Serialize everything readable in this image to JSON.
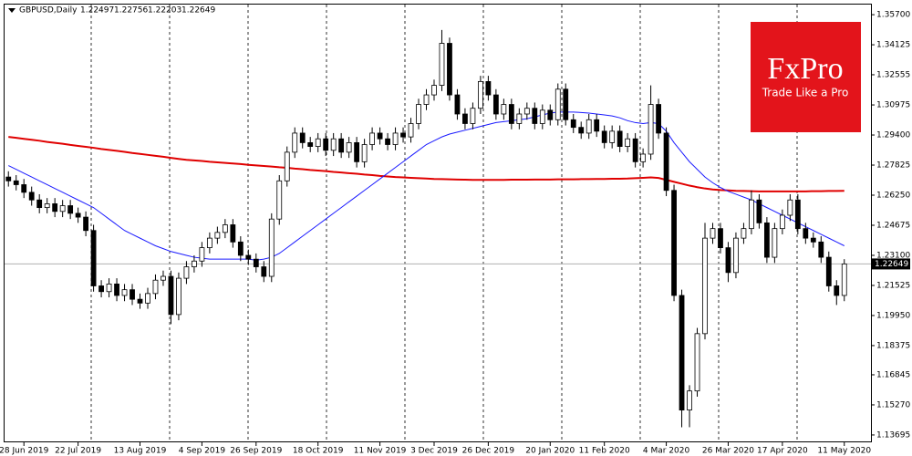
{
  "header": {
    "symbol": "GBPUSD,Daily",
    "values": [
      "1.22497",
      "1.22756",
      "1.22203",
      "1.22649"
    ]
  },
  "logo": {
    "brand": "FxPro",
    "tagline": "Trade Like a Pro"
  },
  "chart_data": {
    "type": "candlestick",
    "categories": [
      null,
      null,
      "28 Jun 2019",
      null,
      null,
      null,
      null,
      null,
      null,
      "22 Jul 2019",
      null,
      null,
      null,
      null,
      null,
      null,
      null,
      "13 Aug 2019",
      null,
      null,
      null,
      null,
      null,
      null,
      null,
      "4 Sep 2019",
      null,
      null,
      null,
      null,
      null,
      null,
      "26 Sep 2019",
      null,
      null,
      null,
      null,
      null,
      null,
      null,
      "18 Oct 2019",
      null,
      null,
      null,
      null,
      null,
      null,
      null,
      "11 Nov 2019",
      null,
      null,
      null,
      null,
      null,
      null,
      "3 Dec 2019",
      null,
      null,
      null,
      null,
      null,
      null,
      "26 Dec 2019",
      null,
      null,
      null,
      null,
      null,
      null,
      null,
      "20 Jan 2020",
      null,
      null,
      null,
      null,
      null,
      null,
      "11 Feb 2020",
      null,
      null,
      null,
      null,
      null,
      null,
      null,
      "4 Mar 2020",
      null,
      null,
      null,
      null,
      null,
      null,
      null,
      "26 Mar 2020",
      null,
      null,
      null,
      null,
      null,
      null,
      "17 Apr 2020",
      null,
      null,
      null,
      null,
      null,
      null,
      null,
      "11 May 2020"
    ],
    "open": [
      1.272,
      1.27,
      1.268,
      1.264,
      1.26,
      1.256,
      1.258,
      1.254,
      1.257,
      1.253,
      1.251,
      1.244,
      1.215,
      1.212,
      1.216,
      1.21,
      1.213,
      1.208,
      1.206,
      1.211,
      1.218,
      1.22,
      1.2,
      1.219,
      1.225,
      1.228,
      1.235,
      1.24,
      1.243,
      1.247,
      1.238,
      1.231,
      1.229,
      1.225,
      1.22,
      1.25,
      1.27,
      1.285,
      1.295,
      1.29,
      1.288,
      1.292,
      1.286,
      1.292,
      1.285,
      1.29,
      1.28,
      1.289,
      1.295,
      1.292,
      1.289,
      1.295,
      1.293,
      1.3,
      1.31,
      1.315,
      1.32,
      1.342,
      1.315,
      1.305,
      1.3,
      1.308,
      1.322,
      1.315,
      1.305,
      1.31,
      1.3,
      1.305,
      1.308,
      1.3,
      1.307,
      1.302,
      1.318,
      1.302,
      1.298,
      1.295,
      1.302,
      1.296,
      1.29,
      1.296,
      1.288,
      1.292,
      1.28,
      1.284,
      1.31,
      1.295,
      1.265,
      1.21,
      1.15,
      1.16,
      1.19,
      1.24,
      1.245,
      1.235,
      1.222,
      1.24,
      1.245,
      1.26,
      1.248,
      1.23,
      1.245,
      1.252,
      1.26,
      1.245,
      1.24,
      1.238,
      1.23,
      1.215,
      1.21
    ],
    "high": [
      1.275,
      1.273,
      1.271,
      1.267,
      1.263,
      1.261,
      1.261,
      1.26,
      1.26,
      1.256,
      1.254,
      1.247,
      1.218,
      1.219,
      1.219,
      1.216,
      1.216,
      1.211,
      1.214,
      1.221,
      1.223,
      1.223,
      1.222,
      1.228,
      1.231,
      1.238,
      1.243,
      1.246,
      1.25,
      1.25,
      1.241,
      1.234,
      1.232,
      1.228,
      1.253,
      1.273,
      1.288,
      1.298,
      1.298,
      1.293,
      1.295,
      1.295,
      1.295,
      1.295,
      1.293,
      1.293,
      1.292,
      1.298,
      1.298,
      1.295,
      1.298,
      1.298,
      1.303,
      1.313,
      1.318,
      1.323,
      1.349,
      1.345,
      1.318,
      1.308,
      1.311,
      1.325,
      1.325,
      1.318,
      1.313,
      1.313,
      1.308,
      1.311,
      1.311,
      1.31,
      1.31,
      1.321,
      1.321,
      1.305,
      1.301,
      1.305,
      1.305,
      1.299,
      1.299,
      1.299,
      1.295,
      1.295,
      1.287,
      1.32,
      1.313,
      1.298,
      1.268,
      1.213,
      1.163,
      1.193,
      1.248,
      1.248,
      1.248,
      1.238,
      1.243,
      1.248,
      1.265,
      1.263,
      1.251,
      1.248,
      1.255,
      1.263,
      1.263,
      1.248,
      1.243,
      1.241,
      1.233,
      1.218,
      1.229
    ],
    "low": [
      1.267,
      1.265,
      1.261,
      1.257,
      1.253,
      1.253,
      1.251,
      1.251,
      1.25,
      1.248,
      1.241,
      1.212,
      1.209,
      1.209,
      1.207,
      1.207,
      1.205,
      1.203,
      1.203,
      1.208,
      1.215,
      1.195,
      1.197,
      1.216,
      1.222,
      1.225,
      1.232,
      1.237,
      1.24,
      1.235,
      1.228,
      1.226,
      1.222,
      1.217,
      1.217,
      1.247,
      1.267,
      1.282,
      1.287,
      1.285,
      1.285,
      1.283,
      1.283,
      1.282,
      1.282,
      1.277,
      1.277,
      1.286,
      1.289,
      1.286,
      1.286,
      1.29,
      1.29,
      1.297,
      1.307,
      1.312,
      1.317,
      1.312,
      1.302,
      1.297,
      1.297,
      1.305,
      1.312,
      1.302,
      1.302,
      1.297,
      1.297,
      1.302,
      1.297,
      1.297,
      1.299,
      1.299,
      1.299,
      1.295,
      1.292,
      1.292,
      1.293,
      1.287,
      1.287,
      1.285,
      1.285,
      1.277,
      1.277,
      1.281,
      1.292,
      1.262,
      1.207,
      1.141,
      1.141,
      1.157,
      1.187,
      1.237,
      1.232,
      1.217,
      1.219,
      1.237,
      1.242,
      1.245,
      1.227,
      1.227,
      1.242,
      1.249,
      1.242,
      1.237,
      1.235,
      1.227,
      1.212,
      1.205,
      1.207
    ],
    "close": [
      1.27,
      1.268,
      1.264,
      1.26,
      1.256,
      1.258,
      1.254,
      1.257,
      1.253,
      1.251,
      1.244,
      1.215,
      1.212,
      1.216,
      1.21,
      1.213,
      1.208,
      1.206,
      1.211,
      1.218,
      1.22,
      1.2,
      1.219,
      1.225,
      1.228,
      1.235,
      1.24,
      1.243,
      1.247,
      1.238,
      1.231,
      1.229,
      1.225,
      1.22,
      1.25,
      1.27,
      1.285,
      1.295,
      1.29,
      1.288,
      1.292,
      1.286,
      1.292,
      1.285,
      1.29,
      1.28,
      1.289,
      1.295,
      1.292,
      1.289,
      1.295,
      1.293,
      1.3,
      1.31,
      1.315,
      1.32,
      1.342,
      1.315,
      1.305,
      1.3,
      1.308,
      1.322,
      1.315,
      1.305,
      1.31,
      1.3,
      1.305,
      1.308,
      1.3,
      1.307,
      1.302,
      1.318,
      1.302,
      1.298,
      1.295,
      1.302,
      1.296,
      1.29,
      1.296,
      1.288,
      1.292,
      1.28,
      1.284,
      1.31,
      1.295,
      1.265,
      1.21,
      1.15,
      1.16,
      1.19,
      1.24,
      1.245,
      1.235,
      1.222,
      1.24,
      1.245,
      1.26,
      1.248,
      1.23,
      1.245,
      1.252,
      1.26,
      1.245,
      1.24,
      1.238,
      1.23,
      1.215,
      1.21,
      1.2265
    ],
    "up_color": "#ffffff",
    "down_color": "#000000",
    "lines": [
      {
        "color": "#e00000",
        "values": [
          1.293,
          1.2925,
          1.292,
          1.2915,
          1.291,
          1.2904,
          1.2899,
          1.2894,
          1.2888,
          1.2883,
          1.2878,
          1.2873,
          1.2867,
          1.2862,
          1.2857,
          1.2852,
          1.2846,
          1.2841,
          1.2836,
          1.2831,
          1.2826,
          1.282,
          1.2815,
          1.281,
          1.2807,
          1.2804,
          1.28,
          1.2797,
          1.2794,
          1.2791,
          1.2788,
          1.2784,
          1.2781,
          1.2778,
          1.2775,
          1.2771,
          1.2768,
          1.2764,
          1.2761,
          1.2757,
          1.2754,
          1.2751,
          1.2747,
          1.2744,
          1.274,
          1.2737,
          1.2733,
          1.273,
          1.2726,
          1.2723,
          1.272,
          1.2718,
          1.2716,
          1.2714,
          1.2712,
          1.271,
          1.2709,
          1.2708,
          1.2707,
          1.2706,
          1.2705,
          1.2705,
          1.2705,
          1.2705,
          1.2705,
          1.2706,
          1.2706,
          1.2706,
          1.2707,
          1.2707,
          1.2707,
          1.2708,
          1.2708,
          1.2708,
          1.2709,
          1.2709,
          1.271,
          1.271,
          1.2711,
          1.2711,
          1.2712,
          1.2714,
          1.2716,
          1.2718,
          1.2715,
          1.2705,
          1.2695,
          1.2685,
          1.2675,
          1.2667,
          1.266,
          1.2655,
          1.2652,
          1.265,
          1.2648,
          1.2647,
          1.2646,
          1.2645,
          1.2645,
          1.2645,
          1.2645,
          1.2645,
          1.2645,
          1.2645,
          1.2646,
          1.2646,
          1.2647,
          1.2647,
          1.2648
        ]
      },
      {
        "color": "#1a1aff",
        "values": [
          1.278,
          1.276,
          1.274,
          1.272,
          1.27,
          1.268,
          1.266,
          1.264,
          1.262,
          1.26,
          1.258,
          1.256,
          1.253,
          1.25,
          1.247,
          1.244,
          1.242,
          1.24,
          1.238,
          1.236,
          1.2345,
          1.233,
          1.232,
          1.231,
          1.23,
          1.2295,
          1.229,
          1.229,
          1.229,
          1.229,
          1.229,
          1.229,
          1.2285,
          1.229,
          1.23,
          1.232,
          1.235,
          1.238,
          1.241,
          1.244,
          1.247,
          1.25,
          1.253,
          1.256,
          1.259,
          1.262,
          1.265,
          1.268,
          1.271,
          1.274,
          1.277,
          1.28,
          1.283,
          1.286,
          1.289,
          1.291,
          1.293,
          1.2945,
          1.2955,
          1.2965,
          1.2975,
          1.2985,
          1.2995,
          1.3005,
          1.301,
          1.3015,
          1.302,
          1.3025,
          1.3035,
          1.3045,
          1.3055,
          1.306,
          1.306,
          1.306,
          1.3058,
          1.3055,
          1.305,
          1.3045,
          1.304,
          1.303,
          1.3015,
          1.3005,
          1.3,
          1.3005,
          1.3,
          1.296,
          1.29,
          1.285,
          1.28,
          1.276,
          1.272,
          1.269,
          1.2665,
          1.2645,
          1.263,
          1.2615,
          1.26,
          1.258,
          1.256,
          1.254,
          1.252,
          1.25,
          1.248,
          1.246,
          1.244,
          1.242,
          1.24,
          1.238,
          1.236
        ]
      }
    ],
    "last": 1.22649,
    "ylim": [
      1.1331,
      1.3623
    ],
    "yticks": [
      {
        "value": 1.357,
        "label": "1.35700"
      },
      1.34125,
      1.32555,
      1.30975,
      {
        "value": 1.294,
        "label": "1.29400"
      },
      1.27825,
      {
        "value": 1.2625,
        "label": "1.26250"
      },
      1.24675,
      {
        "value": 1.231,
        "label": "1.23100"
      },
      1.21525,
      {
        "value": 1.1995,
        "label": "1.19950"
      },
      1.18375,
      1.16845,
      {
        "value": 1.1527,
        "label": "1.15270"
      },
      1.13695
    ]
  }
}
